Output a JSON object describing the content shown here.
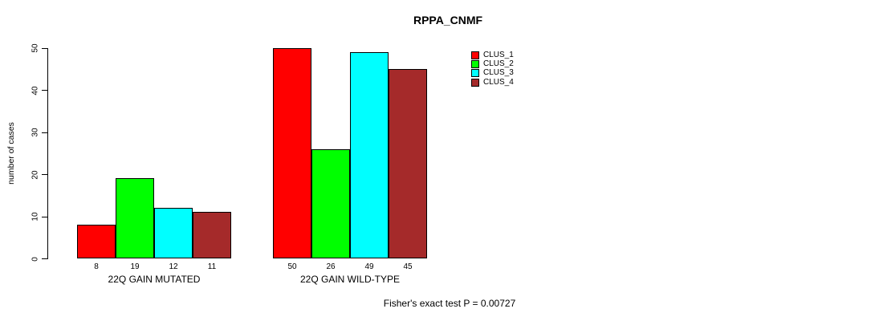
{
  "title": "RPPA_CNMF",
  "y_axis": {
    "label": "number of cases",
    "ticks": [
      0,
      10,
      20,
      30,
      40,
      50
    ]
  },
  "footer": {
    "pvalue_text": "Fisher's exact test P = 0.00727"
  },
  "colors": {
    "background": "#ffffff",
    "axis": "#000000",
    "bar_border": "#000000"
  },
  "chart_data": {
    "type": "bar",
    "title": "RPPA_CNMF",
    "ylabel": "number of cases",
    "xlabel": "",
    "ylim": [
      0,
      50
    ],
    "yticks": [
      0,
      10,
      20,
      30,
      40,
      50
    ],
    "grid": false,
    "legend_position": "top-right",
    "categories": [
      "22Q GAIN MUTATED",
      "22Q GAIN WILD-TYPE"
    ],
    "series": [
      {
        "name": "CLUS_1",
        "color": "#FF0000",
        "values": [
          8,
          50
        ]
      },
      {
        "name": "CLUS_2",
        "color": "#00FF00",
        "values": [
          19,
          26
        ]
      },
      {
        "name": "CLUS_3",
        "color": "#00FFFF",
        "values": [
          12,
          49
        ]
      },
      {
        "name": "CLUS_4",
        "color": "#A52A2A",
        "values": [
          11,
          45
        ]
      }
    ],
    "bar_value_labels": [
      [
        8,
        19,
        12,
        11
      ],
      [
        50,
        26,
        49,
        45
      ]
    ],
    "annotation": "Fisher's exact test P = 0.00727"
  }
}
